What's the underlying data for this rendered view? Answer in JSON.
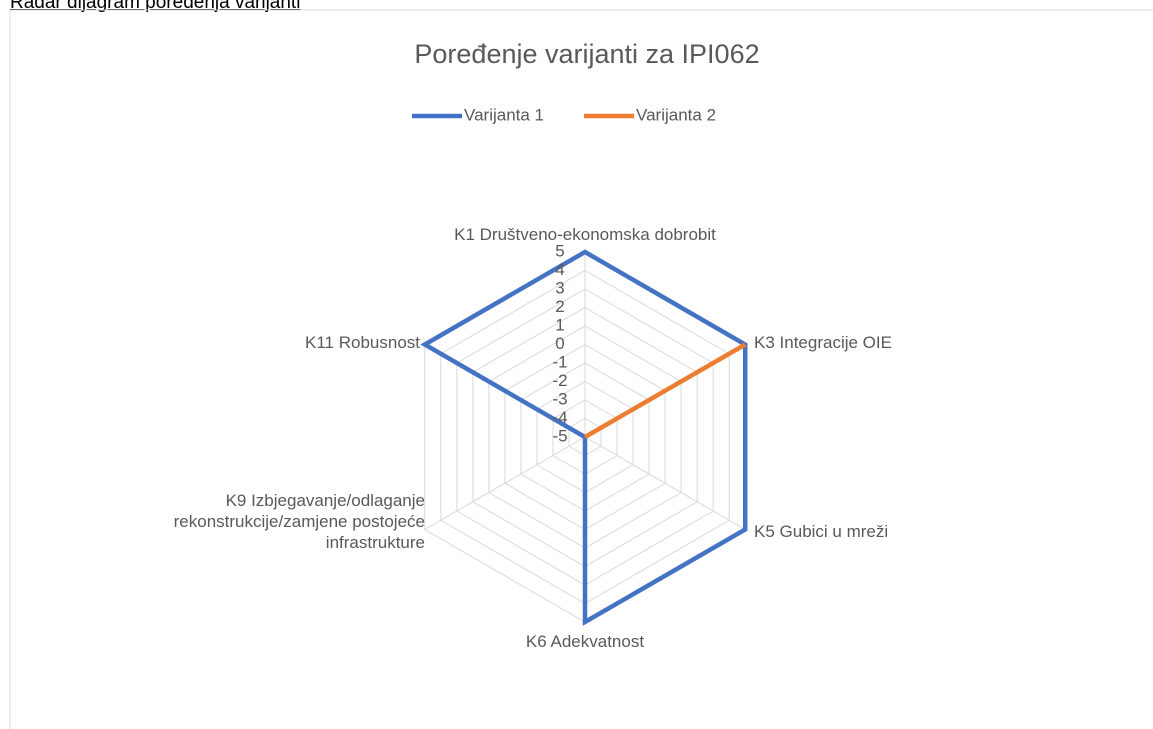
{
  "caption": "Radar dijagram poređenja varijanti",
  "chart_data": {
    "type": "radar",
    "title": "Poređenje varijanti za IPI062",
    "categories": [
      "K1 Društveno-ekonomska dobrobit",
      "K3 Integracije OIE",
      "K5 Gubici u mreži",
      "K6 Adekvatnost",
      "K9 Izbjegavanje/odlaganje rekonstrukcije/zamjene postojeće infrastrukture",
      "K11 Robusnost"
    ],
    "series": [
      {
        "name": "Varijanta 1",
        "color": "#4472c4",
        "values": [
          5,
          5,
          5,
          5,
          -5,
          5
        ]
      },
      {
        "name": "Varijanta 2",
        "color": "#ed7d31",
        "values": [
          -5,
          5,
          -5,
          -5,
          -5,
          -5
        ]
      }
    ],
    "ylim": [
      -5,
      5
    ],
    "yticks": [
      -5,
      -4,
      -3,
      -2,
      -1,
      0,
      1,
      2,
      3,
      4,
      5
    ],
    "grid": true,
    "legend": "top"
  }
}
